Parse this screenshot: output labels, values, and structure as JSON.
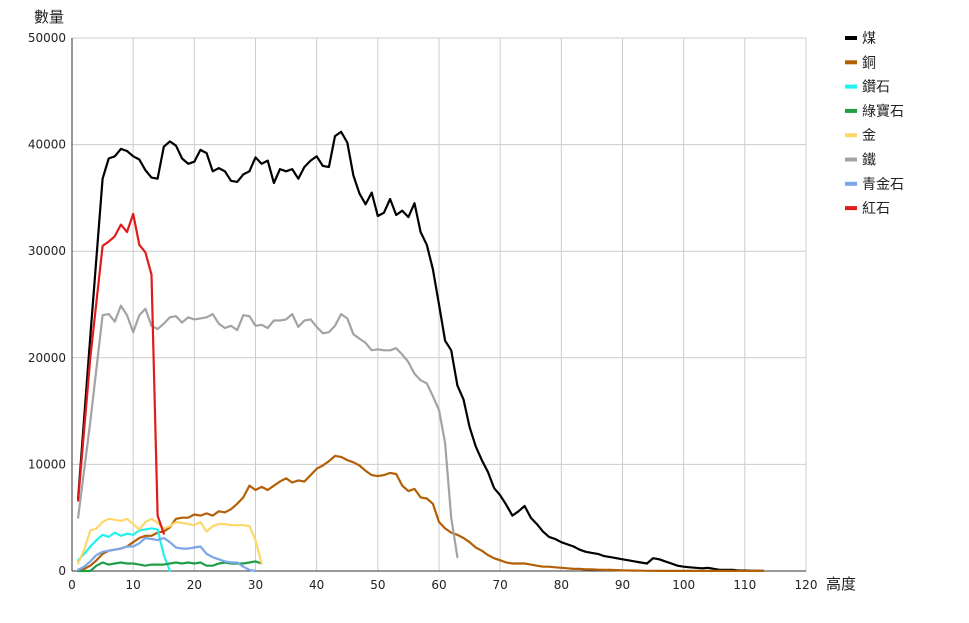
{
  "chart_data": {
    "type": "line",
    "title": "",
    "xlabel": "高度",
    "ylabel": "數量",
    "xlim": [
      0,
      120
    ],
    "ylim": [
      0,
      50000
    ],
    "x_ticks": [
      0,
      10,
      20,
      30,
      40,
      50,
      60,
      70,
      80,
      90,
      100,
      110,
      120
    ],
    "y_ticks": [
      0,
      10000,
      20000,
      30000,
      40000,
      50000
    ],
    "grid": true,
    "legend_position": "right",
    "series": [
      {
        "name": "煤",
        "color": "#000000",
        "x": [
          1,
          3,
          5,
          6,
          7,
          8,
          9,
          10,
          11,
          12,
          13,
          14,
          15,
          16,
          17,
          18,
          19,
          20,
          21,
          22,
          23,
          24,
          25,
          26,
          27,
          28,
          29,
          30,
          31,
          32,
          33,
          34,
          35,
          36,
          37,
          38,
          39,
          40,
          41,
          42,
          43,
          44,
          45,
          46,
          47,
          48,
          49,
          50,
          51,
          52,
          53,
          54,
          55,
          56,
          57,
          58,
          59,
          60,
          61,
          62,
          63,
          64,
          65,
          66,
          67,
          68,
          69,
          70,
          71,
          72,
          73,
          74,
          75,
          76,
          77,
          78,
          79,
          80,
          81,
          82,
          83,
          84,
          85,
          86,
          87,
          88,
          89,
          90,
          91,
          92,
          93,
          94,
          95,
          96,
          97,
          98,
          99,
          100,
          101,
          102,
          103,
          104,
          105,
          106,
          107,
          108,
          109,
          110,
          111,
          112,
          113
        ],
        "values": [
          6800,
          22000,
          36800,
          38700,
          38900,
          39600,
          39400,
          38900,
          38600,
          37600,
          36900,
          36800,
          39800,
          40300,
          39900,
          38700,
          38200,
          38400,
          39500,
          39200,
          37500,
          37800,
          37500,
          36600,
          36500,
          37200,
          37500,
          38800,
          38200,
          38500,
          36400,
          37700,
          37500,
          37700,
          36800,
          37900,
          38500,
          38900,
          38000,
          37900,
          40800,
          41200,
          40200,
          37100,
          35400,
          34400,
          35500,
          33300,
          33600,
          34900,
          33400,
          33800,
          33200,
          34500,
          31800,
          30600,
          28300,
          25000,
          21600,
          20700,
          17400,
          16100,
          13500,
          11700,
          10400,
          9300,
          7800,
          7100,
          6200,
          5200,
          5600,
          6100,
          5000,
          4400,
          3700,
          3200,
          3000,
          2700,
          2500,
          2300,
          2000,
          1800,
          1700,
          1600,
          1400,
          1300,
          1200,
          1100,
          1000,
          900,
          800,
          700,
          1200,
          1100,
          900,
          700,
          500,
          400,
          350,
          300,
          250,
          300,
          200,
          100,
          100,
          100,
          50,
          50,
          30,
          20,
          10
        ]
      },
      {
        "name": "銅",
        "color": "#b35f06",
        "x": [
          1,
          2,
          3,
          4,
          5,
          6,
          7,
          8,
          9,
          10,
          11,
          12,
          13,
          14,
          15,
          16,
          17,
          18,
          19,
          20,
          21,
          22,
          23,
          24,
          25,
          26,
          27,
          28,
          29,
          30,
          31,
          32,
          33,
          34,
          35,
          36,
          37,
          38,
          39,
          40,
          41,
          42,
          43,
          44,
          45,
          46,
          47,
          48,
          49,
          50,
          51,
          52,
          53,
          54,
          55,
          56,
          57,
          58,
          59,
          60,
          61,
          62,
          63,
          64,
          65,
          66,
          67,
          68,
          69,
          70,
          71,
          72,
          73,
          74,
          75,
          76,
          77,
          78,
          79,
          80,
          81,
          82,
          83,
          84,
          85,
          86,
          87,
          88,
          89,
          90,
          91,
          92,
          93,
          94,
          95,
          96,
          97,
          98,
          99,
          100,
          101,
          102,
          103,
          104,
          105,
          106,
          107,
          108,
          109,
          110,
          111,
          112,
          113
        ],
        "values": [
          100,
          200,
          500,
          1000,
          1600,
          1900,
          2000,
          2100,
          2300,
          2700,
          3100,
          3300,
          3300,
          3600,
          3700,
          4100,
          4900,
          5000,
          5000,
          5300,
          5200,
          5400,
          5200,
          5600,
          5500,
          5800,
          6300,
          6900,
          8000,
          7600,
          7900,
          7600,
          8000,
          8400,
          8700,
          8300,
          8500,
          8400,
          9000,
          9600,
          9900,
          10300,
          10800,
          10700,
          10400,
          10200,
          9900,
          9400,
          9000,
          8900,
          9000,
          9200,
          9100,
          8000,
          7500,
          7700,
          6900,
          6800,
          6300,
          4600,
          4000,
          3600,
          3400,
          3100,
          2700,
          2200,
          1900,
          1500,
          1200,
          1000,
          800,
          700,
          700,
          700,
          600,
          500,
          400,
          400,
          350,
          300,
          250,
          200,
          200,
          150,
          150,
          120,
          100,
          100,
          80,
          60,
          50,
          40,
          30,
          20,
          20,
          10,
          10,
          10,
          5,
          5,
          5,
          5,
          5,
          5,
          5,
          5,
          5,
          5,
          5,
          5,
          5,
          5,
          5
        ]
      },
      {
        "name": "鑽石",
        "color": "#1ff3f0",
        "x": [
          1,
          2,
          3,
          4,
          5,
          6,
          7,
          8,
          9,
          10,
          11,
          12,
          13,
          14,
          15,
          16
        ],
        "values": [
          1000,
          1600,
          2300,
          2900,
          3400,
          3200,
          3600,
          3300,
          3500,
          3400,
          3800,
          3900,
          4000,
          3900,
          1500,
          0
        ]
      },
      {
        "name": "綠寶石",
        "color": "#1f9e47",
        "x": [
          1,
          2,
          3,
          4,
          5,
          6,
          7,
          8,
          9,
          10,
          11,
          12,
          13,
          14,
          15,
          16,
          17,
          18,
          19,
          20,
          21,
          22,
          23,
          24,
          25,
          26,
          27,
          28,
          29,
          30,
          31
        ],
        "values": [
          0,
          0,
          0,
          500,
          800,
          600,
          700,
          800,
          700,
          700,
          600,
          500,
          600,
          600,
          600,
          700,
          800,
          700,
          800,
          700,
          800,
          500,
          500,
          700,
          800,
          700,
          700,
          700,
          800,
          900,
          700
        ]
      },
      {
        "name": "金",
        "color": "#fcd76a",
        "x": [
          1,
          2,
          3,
          4,
          5,
          6,
          7,
          8,
          9,
          10,
          11,
          12,
          13,
          14,
          15,
          16,
          17,
          18,
          19,
          20,
          21,
          22,
          23,
          24,
          25,
          26,
          27,
          28,
          29,
          30,
          31
        ],
        "values": [
          700,
          2000,
          3800,
          4000,
          4600,
          4900,
          4800,
          4700,
          4900,
          4400,
          3900,
          4600,
          4900,
          4500,
          4000,
          4200,
          4600,
          4500,
          4400,
          4300,
          4600,
          3700,
          4200,
          4400,
          4400,
          4300,
          4300,
          4300,
          4200,
          2900,
          700
        ]
      },
      {
        "name": "鐵",
        "color": "#a3a3a3",
        "x": [
          1,
          3,
          5,
          6,
          7,
          8,
          9,
          10,
          11,
          12,
          13,
          14,
          15,
          16,
          17,
          18,
          19,
          20,
          21,
          22,
          23,
          24,
          25,
          26,
          27,
          28,
          29,
          30,
          31,
          32,
          33,
          34,
          35,
          36,
          37,
          38,
          39,
          40,
          41,
          42,
          43,
          44,
          45,
          46,
          47,
          48,
          49,
          50,
          51,
          52,
          53,
          54,
          55,
          56,
          57,
          58,
          59,
          60,
          61,
          62,
          63
        ],
        "values": [
          5000,
          14000,
          24000,
          24100,
          23400,
          24900,
          24000,
          22400,
          24000,
          24600,
          23000,
          22700,
          23200,
          23800,
          23900,
          23300,
          23800,
          23600,
          23700,
          23800,
          24100,
          23200,
          22800,
          23000,
          22600,
          24000,
          23900,
          23000,
          23100,
          22800,
          23500,
          23500,
          23600,
          24100,
          22900,
          23500,
          23600,
          22900,
          22300,
          22400,
          23000,
          24100,
          23700,
          22200,
          21800,
          21400,
          20700,
          20800,
          20700,
          20700,
          20900,
          20300,
          19600,
          18500,
          17900,
          17600,
          16400,
          15100,
          12000,
          5000,
          1300
        ]
      },
      {
        "name": "青金石",
        "color": "#7ba6e8",
        "x": [
          1,
          2,
          3,
          4,
          5,
          6,
          7,
          8,
          9,
          10,
          11,
          12,
          13,
          14,
          15,
          16,
          17,
          18,
          19,
          20,
          21,
          22,
          23,
          24,
          25,
          26,
          27,
          28,
          29,
          30
        ],
        "values": [
          100,
          400,
          900,
          1500,
          1800,
          1900,
          2000,
          2100,
          2300,
          2300,
          2600,
          3100,
          3000,
          2900,
          3100,
          2700,
          2200,
          2100,
          2100,
          2200,
          2300,
          1600,
          1300,
          1100,
          900,
          800,
          800,
          400,
          100,
          0
        ]
      },
      {
        "name": "紅石",
        "color": "#e01b1b",
        "x": [
          1,
          3,
          5,
          6,
          7,
          8,
          9,
          10,
          11,
          12,
          13,
          14,
          15
        ],
        "values": [
          6600,
          20000,
          30500,
          30900,
          31400,
          32500,
          31800,
          33500,
          30600,
          29900,
          27800,
          5200,
          3500
        ]
      }
    ]
  }
}
